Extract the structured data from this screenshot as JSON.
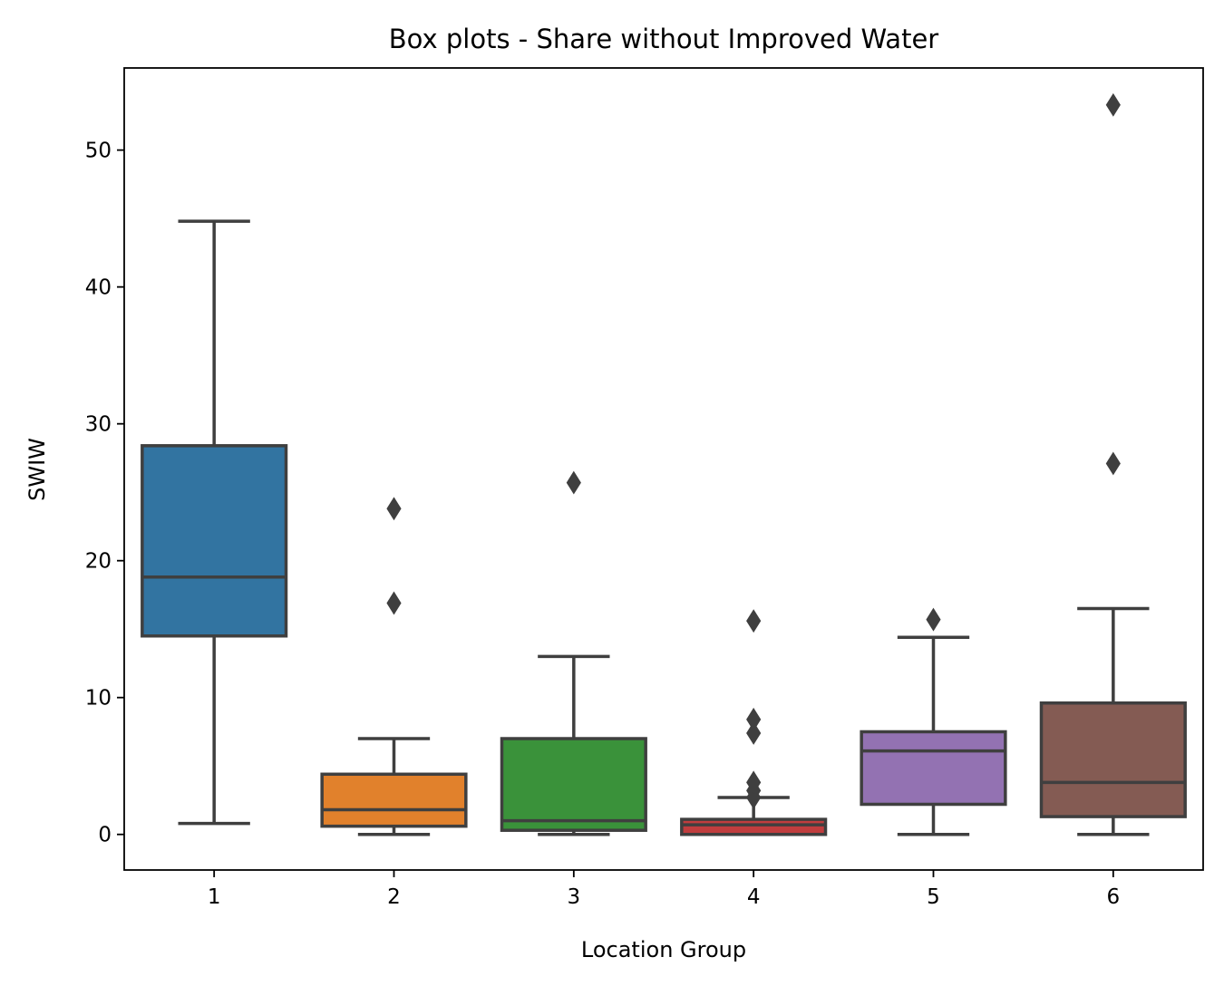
{
  "chart_data": {
    "type": "box",
    "title": "Box plots - Share without Improved Water",
    "xlabel": "Location Group",
    "ylabel": "SWIW",
    "ylim": [
      -2.6,
      56
    ],
    "y_ticks": [
      "0",
      "10",
      "20",
      "30",
      "40",
      "50"
    ],
    "categories": [
      "1",
      "2",
      "3",
      "4",
      "5",
      "6"
    ],
    "grid": false,
    "legend": "none",
    "line_color": "#3f3f3f",
    "groups": [
      {
        "category": "1",
        "color": "#3274a1",
        "whisker_low": 0.8,
        "q1": 14.5,
        "median": 18.8,
        "q3": 28.4,
        "whisker_high": 44.8,
        "outliers": []
      },
      {
        "category": "2",
        "color": "#e1812c",
        "whisker_low": 0.0,
        "q1": 0.6,
        "median": 1.8,
        "q3": 4.4,
        "whisker_high": 7.0,
        "outliers": [
          16.9,
          23.8
        ]
      },
      {
        "category": "3",
        "color": "#3a923a",
        "whisker_low": 0.0,
        "q1": 0.3,
        "median": 1.0,
        "q3": 7.0,
        "whisker_high": 13.0,
        "outliers": [
          25.7
        ]
      },
      {
        "category": "4",
        "color": "#c03d3e",
        "whisker_low": 0.0,
        "q1": 0.0,
        "median": 0.7,
        "q3": 1.1,
        "whisker_high": 2.7,
        "outliers": [
          2.7,
          3.2,
          3.8,
          7.4,
          8.4,
          15.6
        ]
      },
      {
        "category": "5",
        "color": "#9372b2",
        "whisker_low": 0.0,
        "q1": 2.2,
        "median": 6.1,
        "q3": 7.5,
        "whisker_high": 14.4,
        "outliers": [
          15.7
        ]
      },
      {
        "category": "6",
        "color": "#845b53",
        "whisker_low": 0.0,
        "q1": 1.3,
        "median": 3.8,
        "q3": 9.6,
        "whisker_high": 16.5,
        "outliers": [
          27.1,
          53.3
        ]
      }
    ]
  }
}
